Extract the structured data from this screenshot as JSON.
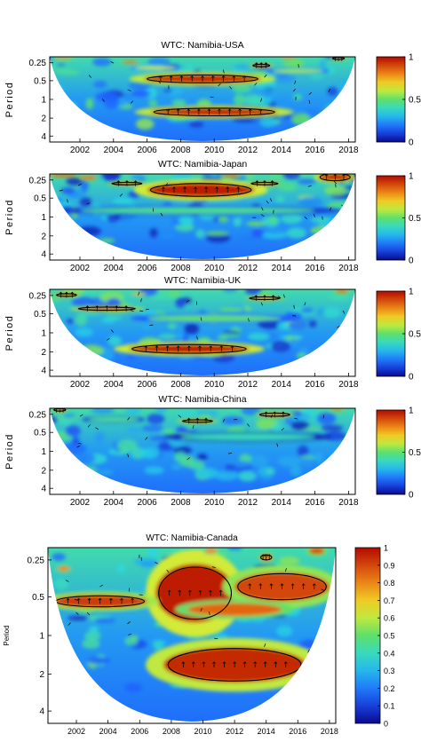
{
  "figure": {
    "colors": {
      "deep_blue": "#0a0a8f",
      "blue": "#1e5bff",
      "cyan": "#27d6e6",
      "green": "#5ee06a",
      "yellow": "#f0ee2a",
      "red": "#d81c0c",
      "dark_red": "#8a0000",
      "frame": "#000000"
    }
  },
  "chart_data": [
    {
      "type": "heatmap",
      "title": "WTC: Namibia-USA",
      "ylabel": "Period",
      "x_ticks": [
        "2002",
        "2004",
        "2006",
        "2008",
        "2010",
        "2012",
        "2014",
        "2016",
        "2018"
      ],
      "y_ticks": [
        "0.25",
        "0.5",
        "1",
        "2",
        "4"
      ],
      "colorbar_ticks": [
        "1",
        "0.5",
        "0"
      ],
      "xlim": [
        2000.2,
        2018.4
      ],
      "ylim": [
        0.2,
        5.6
      ],
      "grid": false,
      "regions": [
        {
          "x": 2009.3,
          "y": 1.6,
          "rx": 3.5,
          "ry": 0.3,
          "v": 0.95
        },
        {
          "x": 2010.0,
          "y": 3.7,
          "rx": 3.8,
          "ry": 0.28,
          "v": 0.95
        },
        {
          "x": 2012.8,
          "y": 0.75,
          "rx": 0.6,
          "ry": 0.1,
          "v": 0.9
        },
        {
          "x": 2005.0,
          "y": 0.55,
          "rx": 0.5,
          "ry": 0.08,
          "v": 0.85
        },
        {
          "x": 2017.4,
          "y": 0.3,
          "rx": 0.4,
          "ry": 0.08,
          "v": 0.9
        },
        {
          "x": 2001.0,
          "y": 0.28,
          "rx": 0.5,
          "ry": 0.08,
          "v": 0.8
        },
        {
          "x": 2014.4,
          "y": 0.28,
          "rx": 0.4,
          "ry": 0.08,
          "v": 0.8
        },
        {
          "x": 2006.5,
          "y": 0.9,
          "rx": 1.2,
          "ry": 0.12,
          "v": 0.6
        },
        {
          "x": 2015.0,
          "y": 1.1,
          "rx": 1.5,
          "ry": 0.15,
          "v": 0.55
        }
      ],
      "significance_contours": [
        {
          "x": 2009.3,
          "y": 1.6,
          "rx": 3.3,
          "ry": 0.25
        },
        {
          "x": 2010.0,
          "y": 3.7,
          "rx": 3.6,
          "ry": 0.24
        },
        {
          "x": 2012.8,
          "y": 0.75,
          "rx": 0.5,
          "ry": 0.08
        },
        {
          "x": 2017.4,
          "y": 0.3,
          "rx": 0.35,
          "ry": 0.07
        }
      ]
    },
    {
      "type": "heatmap",
      "title": "WTC: Namibia-Japan",
      "ylabel": "Period",
      "x_ticks": [
        "2002",
        "2004",
        "2006",
        "2008",
        "2010",
        "2012",
        "2014",
        "2016",
        "2018"
      ],
      "y_ticks": [
        "0.25",
        "0.5",
        "1",
        "2",
        "4"
      ],
      "colorbar_ticks": [
        "1",
        "0.5",
        "0"
      ],
      "xlim": [
        2000.2,
        2018.4
      ],
      "ylim": [
        0.2,
        5.6
      ],
      "grid": false,
      "regions": [
        {
          "x": 2009.2,
          "y": 1.2,
          "rx": 3.2,
          "ry": 0.45,
          "v": 0.97
        },
        {
          "x": 2004.8,
          "y": 0.8,
          "rx": 1.0,
          "ry": 0.1,
          "v": 0.85
        },
        {
          "x": 2013.0,
          "y": 0.8,
          "rx": 0.9,
          "ry": 0.1,
          "v": 0.85
        },
        {
          "x": 2017.2,
          "y": 0.4,
          "rx": 1.0,
          "ry": 0.25,
          "v": 0.95
        },
        {
          "x": 2001.0,
          "y": 0.3,
          "rx": 0.8,
          "ry": 0.1,
          "v": 0.9
        },
        {
          "x": 2011.0,
          "y": 0.3,
          "rx": 0.5,
          "ry": 0.1,
          "v": 0.9
        },
        {
          "x": 2002.5,
          "y": 0.45,
          "rx": 0.5,
          "ry": 0.12,
          "v": 0.85
        },
        {
          "x": 2009.0,
          "y": 2.5,
          "rx": 7.0,
          "ry": 0.2,
          "v": 0.45
        }
      ],
      "significance_contours": [
        {
          "x": 2009.2,
          "y": 1.2,
          "rx": 3.0,
          "ry": 0.4
        },
        {
          "x": 2004.8,
          "y": 0.8,
          "rx": 0.9,
          "ry": 0.08
        },
        {
          "x": 2013.0,
          "y": 0.8,
          "rx": 0.8,
          "ry": 0.08
        },
        {
          "x": 2017.2,
          "y": 0.4,
          "rx": 0.9,
          "ry": 0.22
        }
      ]
    },
    {
      "type": "heatmap",
      "title": "WTC: Namibia-UK",
      "ylabel": "Period",
      "x_ticks": [
        "2002",
        "2004",
        "2006",
        "2008",
        "2010",
        "2012",
        "2014",
        "2016",
        "2018"
      ],
      "y_ticks": [
        "0.25",
        "0.5",
        "1",
        "2",
        "4"
      ],
      "colorbar_ticks": [
        "1",
        "0.5",
        "0"
      ],
      "xlim": [
        2000.2,
        2018.4
      ],
      "ylim": [
        0.2,
        5.6
      ],
      "grid": false,
      "regions": [
        {
          "x": 2008.5,
          "y": 3.9,
          "rx": 3.6,
          "ry": 0.3,
          "v": 0.97
        },
        {
          "x": 2003.6,
          "y": 1.4,
          "rx": 1.8,
          "ry": 0.12,
          "v": 0.9
        },
        {
          "x": 2001.2,
          "y": 0.55,
          "rx": 0.7,
          "ry": 0.1,
          "v": 0.85
        },
        {
          "x": 2013.0,
          "y": 0.75,
          "rx": 1.0,
          "ry": 0.1,
          "v": 0.85
        },
        {
          "x": 2017.6,
          "y": 0.3,
          "rx": 0.4,
          "ry": 0.12,
          "v": 0.85
        },
        {
          "x": 2005.5,
          "y": 0.5,
          "rx": 0.4,
          "ry": 0.08,
          "v": 0.75
        },
        {
          "x": 2010.0,
          "y": 2.0,
          "rx": 4.0,
          "ry": 0.2,
          "v": 0.5
        }
      ],
      "significance_contours": [
        {
          "x": 2008.5,
          "y": 3.9,
          "rx": 3.4,
          "ry": 0.27
        },
        {
          "x": 2003.6,
          "y": 1.4,
          "rx": 1.7,
          "ry": 0.1
        },
        {
          "x": 2001.2,
          "y": 0.55,
          "rx": 0.6,
          "ry": 0.08
        },
        {
          "x": 2013.0,
          "y": 0.75,
          "rx": 0.9,
          "ry": 0.08
        }
      ]
    },
    {
      "type": "heatmap",
      "title": "WTC: Namibia-China",
      "ylabel": "Period",
      "x_ticks": [
        "2002",
        "2004",
        "2006",
        "2008",
        "2010",
        "2012",
        "2014",
        "2016",
        "2018"
      ],
      "y_ticks": [
        "0.25",
        "0.5",
        "1",
        "2",
        "4"
      ],
      "colorbar_ticks": [
        "1",
        "0.5",
        "0"
      ],
      "xlim": [
        2000.2,
        2018.4
      ],
      "ylim": [
        0.2,
        5.6
      ],
      "grid": false,
      "regions": [
        {
          "x": 2009.0,
          "y": 1.0,
          "rx": 1.0,
          "ry": 0.1,
          "v": 0.9
        },
        {
          "x": 2013.6,
          "y": 0.6,
          "rx": 1.0,
          "ry": 0.12,
          "v": 0.85
        },
        {
          "x": 2000.8,
          "y": 0.3,
          "rx": 0.4,
          "ry": 0.1,
          "v": 0.85
        },
        {
          "x": 2017.3,
          "y": 0.28,
          "rx": 0.4,
          "ry": 0.08,
          "v": 0.85
        },
        {
          "x": 2012.0,
          "y": 2.0,
          "rx": 4.0,
          "ry": 0.2,
          "v": 0.4
        },
        {
          "x": 2004.0,
          "y": 0.9,
          "rx": 1.5,
          "ry": 0.15,
          "v": 0.45
        }
      ],
      "significance_contours": [
        {
          "x": 2009.0,
          "y": 1.0,
          "rx": 0.9,
          "ry": 0.08
        },
        {
          "x": 2013.6,
          "y": 0.6,
          "rx": 0.9,
          "ry": 0.1
        },
        {
          "x": 2000.8,
          "y": 0.3,
          "rx": 0.35,
          "ry": 0.08
        }
      ]
    },
    {
      "type": "heatmap",
      "title": "WTC: Namibia-Canada",
      "ylabel": "Period",
      "x_ticks": [
        "2002",
        "2004",
        "2006",
        "2008",
        "2010",
        "2012",
        "2014",
        "2016",
        "2018"
      ],
      "y_ticks": [
        "0.25",
        "0.5",
        "1",
        "2",
        "4"
      ],
      "colorbar_ticks": [
        "1",
        "0.9",
        "0.8",
        "0.7",
        "0.6",
        "0.5",
        "0.4",
        "0.3",
        "0.2",
        "0.1",
        "0"
      ],
      "xlim": [
        2000.2,
        2018.4
      ],
      "ylim": [
        0.2,
        5.6
      ],
      "grid": false,
      "regions": [
        {
          "x": 2009.5,
          "y": 1.6,
          "rx": 2.5,
          "ry": 0.9,
          "v": 0.97
        },
        {
          "x": 2003.5,
          "y": 1.85,
          "rx": 3.0,
          "ry": 0.2,
          "v": 0.92
        },
        {
          "x": 2015.0,
          "y": 1.4,
          "rx": 3.0,
          "ry": 0.45,
          "v": 0.9
        },
        {
          "x": 2012.0,
          "y": 2.1,
          "rx": 3.0,
          "ry": 0.2,
          "v": 0.85
        },
        {
          "x": 2012.0,
          "y": 3.8,
          "rx": 4.5,
          "ry": 0.55,
          "v": 0.95
        },
        {
          "x": 2017.2,
          "y": 0.3,
          "rx": 0.5,
          "ry": 0.1,
          "v": 0.9
        },
        {
          "x": 2014.0,
          "y": 0.5,
          "rx": 0.4,
          "ry": 0.1,
          "v": 0.85
        },
        {
          "x": 2001.2,
          "y": 0.85,
          "rx": 0.4,
          "ry": 0.08,
          "v": 0.8
        },
        {
          "x": 2010.5,
          "y": 0.3,
          "rx": 0.4,
          "ry": 0.08,
          "v": 0.8
        }
      ],
      "significance_contours": [
        {
          "x": 2009.5,
          "y": 1.6,
          "rx": 2.3,
          "ry": 0.8
        },
        {
          "x": 2015.0,
          "y": 1.4,
          "rx": 2.8,
          "ry": 0.4
        },
        {
          "x": 2012.0,
          "y": 3.8,
          "rx": 4.2,
          "ry": 0.5
        },
        {
          "x": 2003.5,
          "y": 1.85,
          "rx": 2.8,
          "ry": 0.17
        },
        {
          "x": 2014.0,
          "y": 0.5,
          "rx": 0.35,
          "ry": 0.08
        }
      ]
    }
  ]
}
